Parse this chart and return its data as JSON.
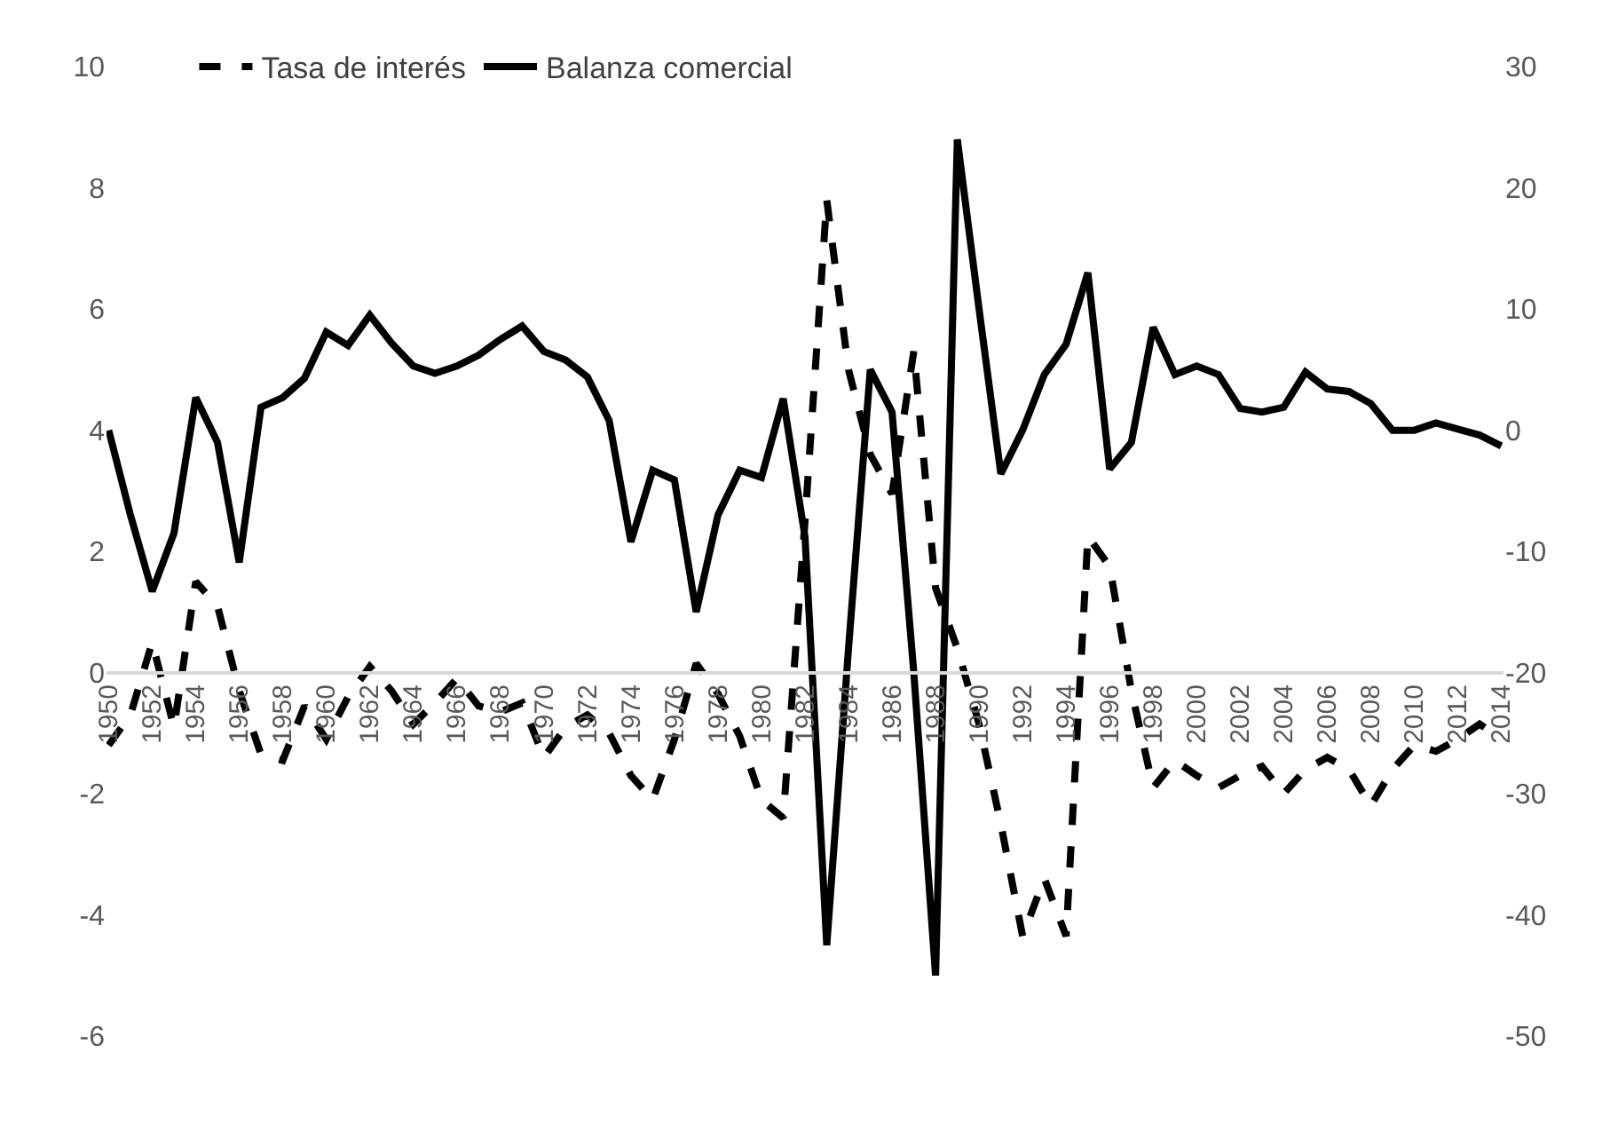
{
  "chart_data": {
    "type": "line",
    "x": [
      1950,
      1951,
      1952,
      1953,
      1954,
      1955,
      1956,
      1957,
      1958,
      1959,
      1960,
      1961,
      1962,
      1963,
      1964,
      1965,
      1966,
      1967,
      1968,
      1969,
      1970,
      1971,
      1972,
      1973,
      1974,
      1975,
      1976,
      1977,
      1978,
      1979,
      1980,
      1981,
      1982,
      1983,
      1984,
      1985,
      1986,
      1987,
      1988,
      1989,
      1990,
      1991,
      1992,
      1993,
      1994,
      1995,
      1996,
      1997,
      1998,
      1999,
      2000,
      2001,
      2002,
      2003,
      2004,
      2005,
      2006,
      2007,
      2008,
      2009,
      2010,
      2011,
      2012,
      2013,
      2014
    ],
    "xlim": [
      1950,
      2014
    ],
    "xticks": [
      1950,
      1952,
      1954,
      1956,
      1958,
      1960,
      1962,
      1964,
      1966,
      1968,
      1970,
      1972,
      1974,
      1976,
      1978,
      1980,
      1982,
      1984,
      1986,
      1988,
      1990,
      1992,
      1994,
      1996,
      1998,
      2000,
      2002,
      2004,
      2006,
      2008,
      2010,
      2012,
      2014
    ],
    "ylim": [
      -6,
      10
    ],
    "yticks": [
      -6,
      -4,
      -2,
      0,
      2,
      4,
      6,
      8,
      10
    ],
    "y2lim": [
      -50,
      30
    ],
    "y2ticks": [
      -50,
      -40,
      -30,
      -20,
      -10,
      0,
      10,
      20,
      30
    ],
    "legend": "top left",
    "series": [
      {
        "name": "Tasa de interés",
        "color": "#000000",
        "line_style": "dashed",
        "values": [
          -1.2,
          -0.7,
          0.5,
          -0.9,
          1.5,
          1.1,
          -0.3,
          -1.35,
          -1.45,
          -0.55,
          -1.1,
          -0.4,
          0.1,
          -0.3,
          -0.85,
          -0.5,
          -0.1,
          -0.55,
          -0.65,
          -0.5,
          -1.4,
          -0.9,
          -0.7,
          -1.0,
          -1.7,
          -2.1,
          -1.1,
          0.15,
          -0.35,
          -1.05,
          -2.1,
          -2.4,
          2.5,
          7.8,
          5.0,
          3.6,
          2.95,
          5.3,
          1.4,
          0.4,
          -0.85,
          -2.5,
          -4.35,
          -3.4,
          -4.35,
          2.25,
          1.75,
          -0.3,
          -1.9,
          -1.45,
          -1.7,
          -1.9,
          -1.7,
          -1.55,
          -2.0,
          -1.6,
          -1.4,
          -1.6,
          -2.2,
          -1.6,
          -1.2,
          -1.3,
          -1.1,
          -0.85,
          -1.1
        ]
      },
      {
        "name": "Balanza comercial",
        "color": "#000000",
        "line_style": "solid",
        "axis": "y2",
        "values": [
          0,
          -7,
          -13.3,
          -8.5,
          2.7,
          -1,
          -10.9,
          1.9,
          2.7,
          4.3,
          8.1,
          7,
          9.5,
          7.2,
          5.3,
          4.7,
          5.3,
          6.2,
          7.5,
          8.6,
          6.5,
          5.8,
          4.4,
          0.8,
          -9.2,
          -3.3,
          -4.1,
          -15,
          -7,
          -3.3,
          -3.9,
          2.6,
          -8.8,
          -42.5,
          -18,
          5,
          1.5,
          -20,
          -45,
          24,
          10,
          -3.6,
          0,
          4.6,
          7.1,
          13,
          -3.2,
          -1,
          8.5,
          4.6,
          5.3,
          4.6,
          1.8,
          1.5,
          1.9,
          4.8,
          3.4,
          3.2,
          2.2,
          0,
          0,
          0.6,
          0.1,
          -0.4,
          -1.3
        ]
      }
    ]
  }
}
